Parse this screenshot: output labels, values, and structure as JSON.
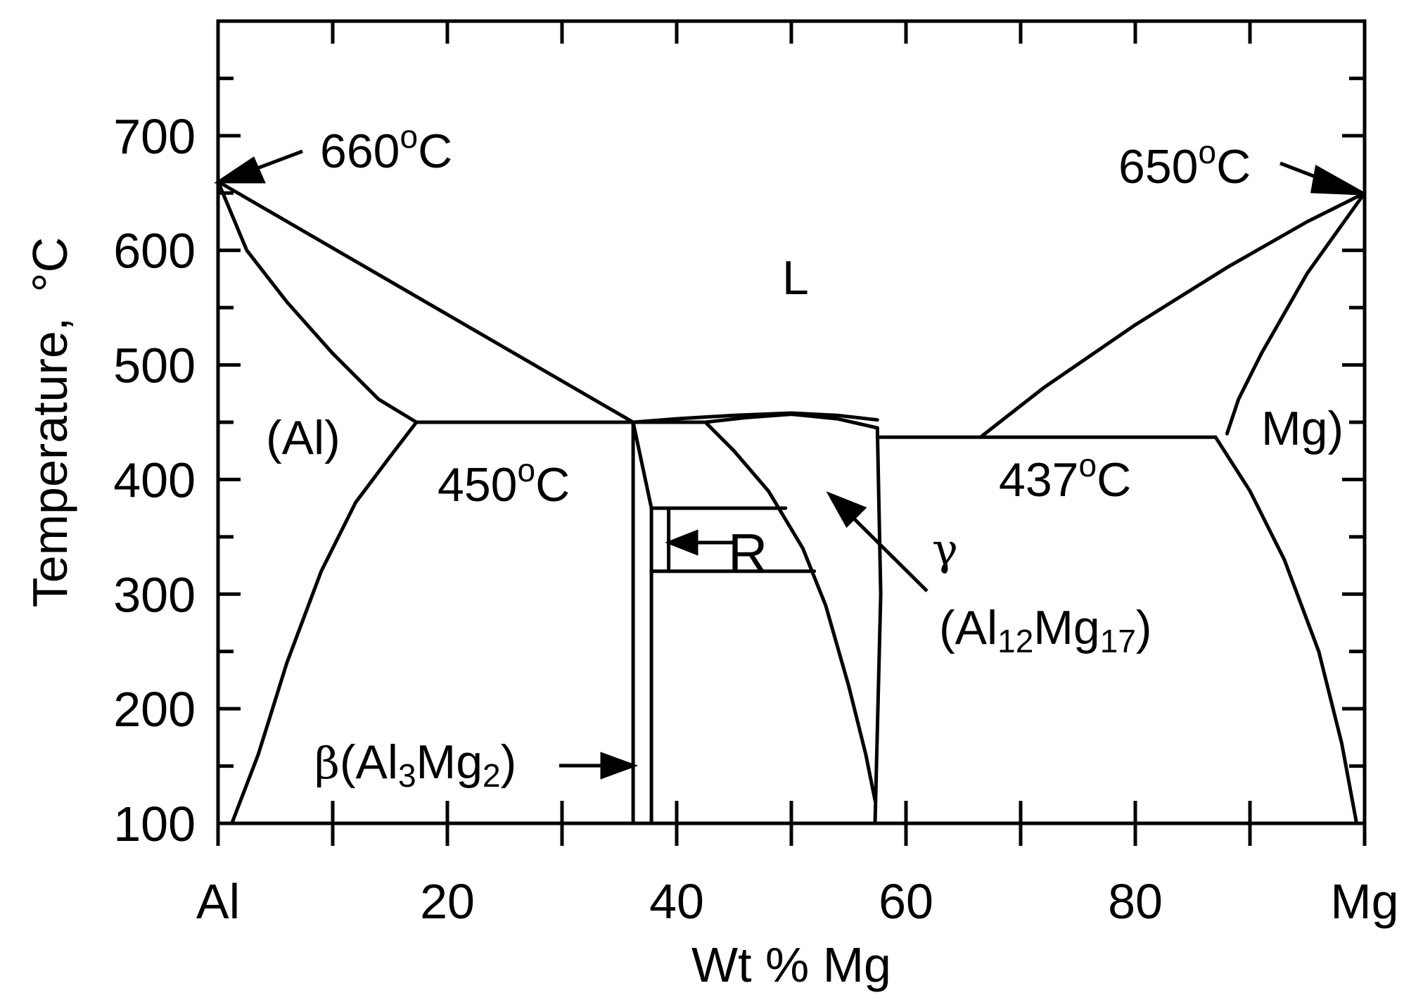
{
  "chart_data": {
    "type": "phase-diagram",
    "title": "",
    "xlabel": "Wt % Mg",
    "ylabel": "Temperature, °C",
    "xlim": [
      0,
      100
    ],
    "ylim": [
      100,
      800
    ],
    "x_ticks": [
      0,
      20,
      40,
      60,
      80,
      100
    ],
    "x_tick_labels": [
      "Al",
      "20",
      "40",
      "60",
      "80",
      "Mg"
    ],
    "y_ticks": [
      100,
      200,
      300,
      400,
      500,
      600,
      700
    ],
    "y_tick_labels": [
      "100",
      "200",
      "300",
      "400",
      "500",
      "600",
      "700"
    ],
    "grid": false,
    "lines": [
      {
        "name": "liquidus-al-side",
        "x": [
          0,
          36.2
        ],
        "y": [
          660,
          450
        ]
      },
      {
        "name": "solidus-al",
        "x": [
          0,
          2.5,
          6,
          10,
          14,
          17.3
        ],
        "y": [
          660,
          600,
          555,
          510,
          470,
          450
        ]
      },
      {
        "name": "solvus-al",
        "x": [
          17.3,
          15,
          12,
          9,
          6,
          3.5,
          1.2
        ],
        "y": [
          450,
          420,
          380,
          320,
          240,
          160,
          100
        ]
      },
      {
        "name": "eutectic-450",
        "x": [
          17.3,
          36.2
        ],
        "y": [
          450,
          450
        ]
      },
      {
        "name": "beta-left",
        "x": [
          36.2,
          36.2
        ],
        "y": [
          450,
          100
        ]
      },
      {
        "name": "beta-right",
        "x": [
          37.8,
          37.8
        ],
        "y": [
          375,
          100
        ]
      },
      {
        "name": "beta-top",
        "x": [
          36.2,
          37.8
        ],
        "y": [
          450,
          375
        ]
      },
      {
        "name": "peritectic-450",
        "x": [
          36.2,
          42.5
        ],
        "y": [
          450,
          450
        ]
      },
      {
        "name": "liquidus-gamma",
        "x": [
          36.2,
          40,
          45,
          50,
          54,
          57.5
        ],
        "y": [
          450,
          453,
          456,
          458,
          456,
          452
        ]
      },
      {
        "name": "gamma-solidus-top",
        "x": [
          42.5,
          46,
          50,
          54,
          57.5
        ],
        "y": [
          450,
          454,
          457,
          453,
          445
        ]
      },
      {
        "name": "gamma-left-solvus",
        "x": [
          42.5,
          45,
          48,
          51,
          53,
          55,
          56.5,
          57.3
        ],
        "y": [
          450,
          425,
          390,
          340,
          290,
          220,
          160,
          120
        ]
      },
      {
        "name": "gamma-right-solvus",
        "x": [
          57.5,
          57.8,
          57.3
        ],
        "y": [
          445,
          300,
          100
        ]
      },
      {
        "name": "R-top",
        "x": [
          37.8,
          49.5
        ],
        "y": [
          375,
          375
        ]
      },
      {
        "name": "R-bottom",
        "x": [
          37.8,
          52
        ],
        "y": [
          320,
          320
        ]
      },
      {
        "name": "R-inner",
        "x": [
          39.3,
          39.3
        ],
        "y": [
          375,
          320
        ]
      },
      {
        "name": "eutectic-437",
        "x": [
          57.5,
          87
        ],
        "y": [
          437,
          437
        ]
      },
      {
        "name": "liquidus-mg-side",
        "x": [
          66.5,
          72,
          80,
          88,
          95,
          100
        ],
        "y": [
          437,
          480,
          535,
          585,
          625,
          650
        ]
      },
      {
        "name": "solidus-mg",
        "x": [
          100,
          95,
          91,
          89,
          88
        ],
        "y": [
          650,
          580,
          510,
          470,
          440
        ]
      },
      {
        "name": "solvus-mg",
        "x": [
          87,
          90,
          93,
          96,
          98,
          99.3
        ],
        "y": [
          437,
          390,
          330,
          250,
          170,
          100
        ]
      }
    ],
    "annotations": [
      {
        "text": "660°C",
        "value": "660"
      },
      {
        "text": "650°C",
        "value": "650"
      },
      {
        "text": "L"
      },
      {
        "text": "(Al)"
      },
      {
        "text": "450°C"
      },
      {
        "text": "437°C"
      },
      {
        "text": "Mg)"
      },
      {
        "text": "R"
      },
      {
        "text": "γ"
      },
      {
        "text": "(Al12Mg17)"
      },
      {
        "text": "β(Al3Mg2)"
      }
    ]
  },
  "labels": {
    "ylabel_text": "Temperature,",
    "ylabel_unit": "°C",
    "t660_num": "660",
    "t660_c": "C",
    "t650_num": "650",
    "t650_c": "C",
    "liquid": "L",
    "al_phase": "(Al)",
    "t450_num": "450",
    "t450_c": "C",
    "t437_num": "437",
    "t437_c": "C",
    "mg_phase": "Mg)",
    "r_label": "R",
    "gamma": "γ",
    "gamma_open": "(Al",
    "gamma_sub1": "12",
    "gamma_mg": "Mg",
    "gamma_sub2": "17",
    "gamma_close": ")",
    "beta": "β",
    "beta_open": "(Al",
    "beta_sub1": "3",
    "beta_mg": "Mg",
    "beta_sub2": "2",
    "beta_close": ")",
    "degree": "o"
  }
}
